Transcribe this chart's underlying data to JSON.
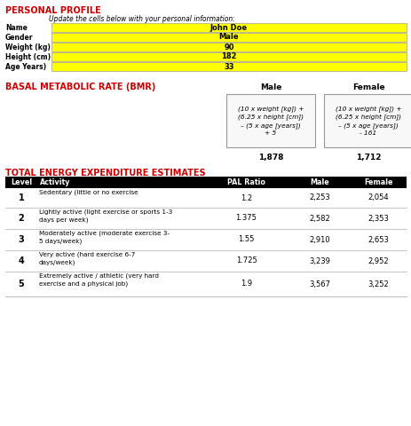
{
  "personal_profile_title": "PERSONAL PROFILE",
  "personal_profile_subtitle": "Update the cells below with your personal information:",
  "personal_fields": [
    "Name",
    "Gender",
    "Weight (kg)",
    "Height (cm)",
    "Age Years)"
  ],
  "personal_values": [
    "John Doe",
    "Male",
    "90",
    "182",
    "33"
  ],
  "yellow_bg": "#FFFF00",
  "black_bg": "#000000",
  "red_color": "#CC0000",
  "white_color": "#FFFFFF",
  "bmr_title": "BASAL METABOLIC RATE (BMR)",
  "bmr_male_formula": "(10 x weight [kg]) +\n(6.25 x height [cm])\n– (5 x age [years])\n+ 5",
  "bmr_female_formula": "(10 x weight [kg]) +\n(6.25 x height [cm])\n– (5 x age [years])\n- 161",
  "bmr_male_value": "1,878",
  "bmr_female_value": "1,712",
  "tee_title": "TOTAL ENERGY EXPENDITURE ESTIMATES",
  "tee_headers": [
    "Level",
    "Activity",
    "PAL Ratio",
    "Male",
    "Female"
  ],
  "tee_levels": [
    "1",
    "2",
    "3",
    "4",
    "5"
  ],
  "tee_activities": [
    "Sedentary (little or no exercise",
    "Lightly active (light exercise or sports 1-3\ndays per week)",
    "Moderately active (moderate exercise 3-\n5 days/week)",
    "Very active (hard exercise 6-7\ndays/week)",
    "Extremely active / athletic (very hard\nexercise and a physical job)"
  ],
  "tee_pal": [
    "1.2",
    "1.375",
    "1.55",
    "1.725",
    "1.9"
  ],
  "tee_male": [
    "2,253",
    "2,582",
    "2,910",
    "3,239",
    "3,567"
  ],
  "tee_female": [
    "2,054",
    "2,353",
    "2,653",
    "2,952",
    "3,252"
  ],
  "bg_color": "#FFFFFF",
  "box_border": "#999999",
  "sep_line_color": "#BBBBBB"
}
